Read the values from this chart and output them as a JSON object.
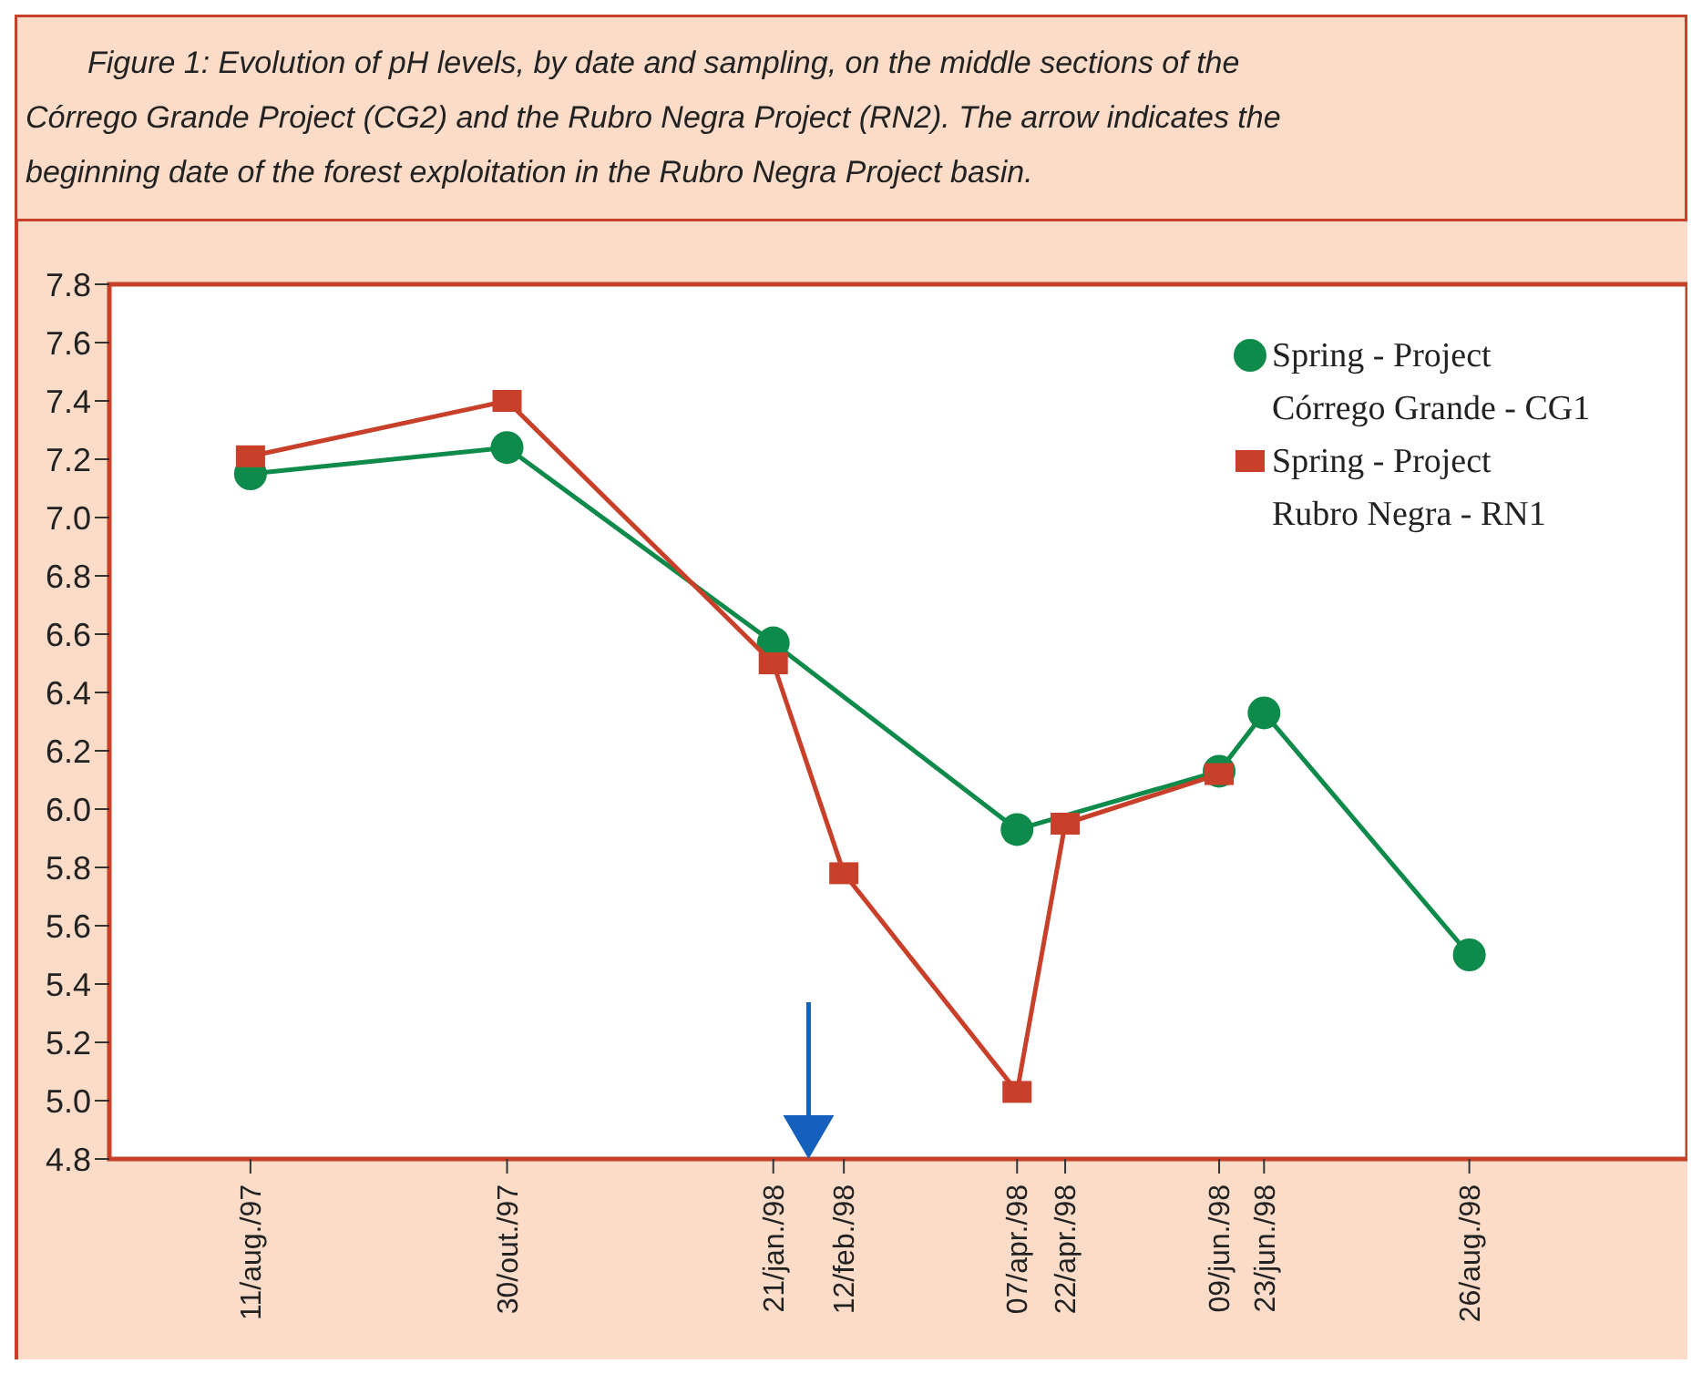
{
  "chart_data": {
    "type": "line",
    "title": "Figure 1: Evolution of pH levels, by date and sampling, on the middle sections of the Córrego Grande Project (CG2) and the Rubro Negra Project (RN2). The arrow indicates the beginning date of the forest exploitation in the Rubro Negra Project basin.",
    "xlim": [
      "1997-06-28",
      "1998-11-02"
    ],
    "xticks": [
      {
        "value": "1997-08-11",
        "label": "11/aug./97"
      },
      {
        "value": "1997-10-30",
        "label": "30/out./97"
      },
      {
        "value": "1998-01-21",
        "label": "21/jan./98"
      },
      {
        "value": "1998-02-12",
        "label": "12/feb./98"
      },
      {
        "value": "1998-04-07",
        "label": "07/apr./98"
      },
      {
        "value": "1998-04-22",
        "label": "22/apr./98"
      },
      {
        "value": "1998-06-09",
        "label": "09/jun./98"
      },
      {
        "value": "1998-06-23",
        "label": "23/jun./98"
      },
      {
        "value": "1998-08-26",
        "label": "26/aug./98"
      }
    ],
    "ylim": [
      4.8,
      7.8
    ],
    "yticks": [
      {
        "value": 4.8,
        "label": "4.8"
      },
      {
        "value": 5,
        "label": "5.0"
      },
      {
        "value": 5.2,
        "label": "5.2"
      },
      {
        "value": 5.4,
        "label": "5.4"
      },
      {
        "value": 5.6,
        "label": "5.6"
      },
      {
        "value": 5.8,
        "label": "5.8"
      },
      {
        "value": 6,
        "label": "6.0"
      },
      {
        "value": 6.2,
        "label": "6.2"
      },
      {
        "value": 6.4,
        "label": "6.4"
      },
      {
        "value": 6.6,
        "label": "6.6"
      },
      {
        "value": 6.8,
        "label": "6.8"
      },
      {
        "value": 7,
        "label": "7.0"
      },
      {
        "value": 7.2,
        "label": "7.2"
      },
      {
        "value": 7.4,
        "label": "7.4"
      },
      {
        "value": 7.6,
        "label": "7.6"
      },
      {
        "value": 7.8,
        "label": "7.8"
      }
    ],
    "legend": "top right",
    "grid": false,
    "series": [
      {
        "name": "Spring - Project Córrego Grande - CG1",
        "color": "#0e8a4a",
        "marker": "circle",
        "x": [
          "1997-08-11",
          "1997-10-30",
          "1998-01-21",
          "1998-04-07",
          "1998-06-09",
          "1998-06-23",
          "1998-08-26"
        ],
        "values": [
          7.15,
          7.24,
          6.57,
          5.93,
          6.13,
          6.33,
          5.5
        ]
      },
      {
        "name": "Spring - Project Rubro Negra - RN1",
        "color": "#c8402a",
        "marker": "square",
        "x": [
          "1997-08-11",
          "1997-10-30",
          "1998-01-21",
          "1998-02-12",
          "1998-04-07",
          "1998-04-22",
          "1998-06-09"
        ],
        "values": [
          7.21,
          7.4,
          6.5,
          5.78,
          5.03,
          5.95,
          6.12
        ]
      }
    ]
  }
}
